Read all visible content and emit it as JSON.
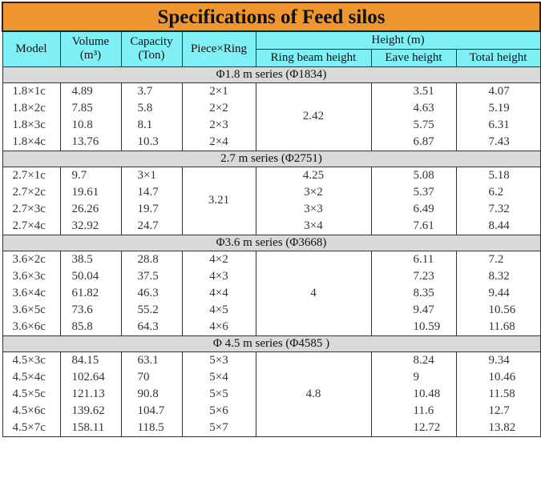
{
  "title": "Specifications of Feed silos",
  "headers": {
    "model": "Model",
    "volume_l1": "Volume",
    "volume_l2": "(m³)",
    "capacity_l1": "Capacity",
    "capacity_l2": "(Ton)",
    "piece_ring": "Piece×Ring",
    "height": "Height (m)",
    "ring_beam_height": "Ring beam height",
    "eave_height": "Eave height",
    "total_height": "Total height"
  },
  "series": [
    {
      "label": "Φ1.8 m series   (Φ1834)",
      "merged_value": "2.42",
      "rows": [
        {
          "model": "1.8×1c",
          "volume": "4.89",
          "capacity": "3.7",
          "piece_ring": "2×1",
          "eave": "3.51",
          "total": "4.07"
        },
        {
          "model": "1.8×2c",
          "volume": "7.85",
          "capacity": "5.8",
          "piece_ring": "2×2",
          "eave": "4.63",
          "total": "5.19"
        },
        {
          "model": "1.8×3c",
          "volume": "10.8",
          "capacity": "8.1",
          "piece_ring": "2×3",
          "eave": "5.75",
          "total": "6.31"
        },
        {
          "model": "1.8×4c",
          "volume": "13.76",
          "capacity": "10.3",
          "piece_ring": "2×4",
          "eave": "6.87",
          "total": "7.43"
        }
      ]
    },
    {
      "label": "2.7 m series   (Φ2751)",
      "merged_value": "3.21",
      "rows": [
        {
          "model": "2.7×1c",
          "volume": "9.7",
          "capacity": "3×1",
          "ring": "4.25",
          "eave": "5.08",
          "total": "5.18"
        },
        {
          "model": "2.7×2c",
          "volume": "19.61",
          "capacity": "14.7",
          "ring": "3×2",
          "eave": "5.37",
          "total": "6.2"
        },
        {
          "model": "2.7×3c",
          "volume": "26.26",
          "capacity": "19.7",
          "ring": "3×3",
          "eave": "6.49",
          "total": "7.32"
        },
        {
          "model": "2.7×4c",
          "volume": "32.92",
          "capacity": "24.7",
          "ring": "3×4",
          "eave": "7.61",
          "total": "8.44"
        }
      ]
    },
    {
      "label": "Φ3.6 m series   (Φ3668)",
      "merged_value": "4",
      "rows": [
        {
          "model": "3.6×2c",
          "volume": "38.5",
          "capacity": "28.8",
          "piece_ring": "4×2",
          "eave": "6.11",
          "total": "7.2"
        },
        {
          "model": "3.6×3c",
          "volume": "50.04",
          "capacity": "37.5",
          "piece_ring": "4×3",
          "eave": "7.23",
          "total": "8.32"
        },
        {
          "model": "3.6×4c",
          "volume": "61.82",
          "capacity": "46.3",
          "piece_ring": "4×4",
          "eave": "8.35",
          "total": "9.44"
        },
        {
          "model": "3.6×5c",
          "volume": "73.6",
          "capacity": "55.2",
          "piece_ring": "4×5",
          "eave": "9.47",
          "total": "10.56"
        },
        {
          "model": "3.6×6c",
          "volume": "85.8",
          "capacity": "64.3",
          "piece_ring": "4×6",
          "eave": "10.59",
          "total": "11.68"
        }
      ]
    },
    {
      "label": "Φ 4.5 m series   (Φ4585 )",
      "merged_value": "4.8",
      "rows": [
        {
          "model": "4.5×3c",
          "volume": "84.15",
          "capacity": "63.1",
          "piece_ring": "5×3",
          "eave": "8.24",
          "total": "9.34"
        },
        {
          "model": "4.5×4c",
          "volume": "102.64",
          "capacity": "70",
          "piece_ring": "5×4",
          "eave": "9",
          "total": "10.46"
        },
        {
          "model": "4.5×5c",
          "volume": "121.13",
          "capacity": "90.8",
          "piece_ring": "5×5",
          "eave": "10.48",
          "total": "11.58"
        },
        {
          "model": "4.5×6c",
          "volume": "139.62",
          "capacity": "104.7",
          "piece_ring": "5×6",
          "eave": "11.6",
          "total": "12.7"
        },
        {
          "model": "4.5×7c",
          "volume": "158.11",
          "capacity": "118.5",
          "piece_ring": "5×7",
          "eave": "12.72",
          "total": "13.82"
        }
      ]
    }
  ]
}
